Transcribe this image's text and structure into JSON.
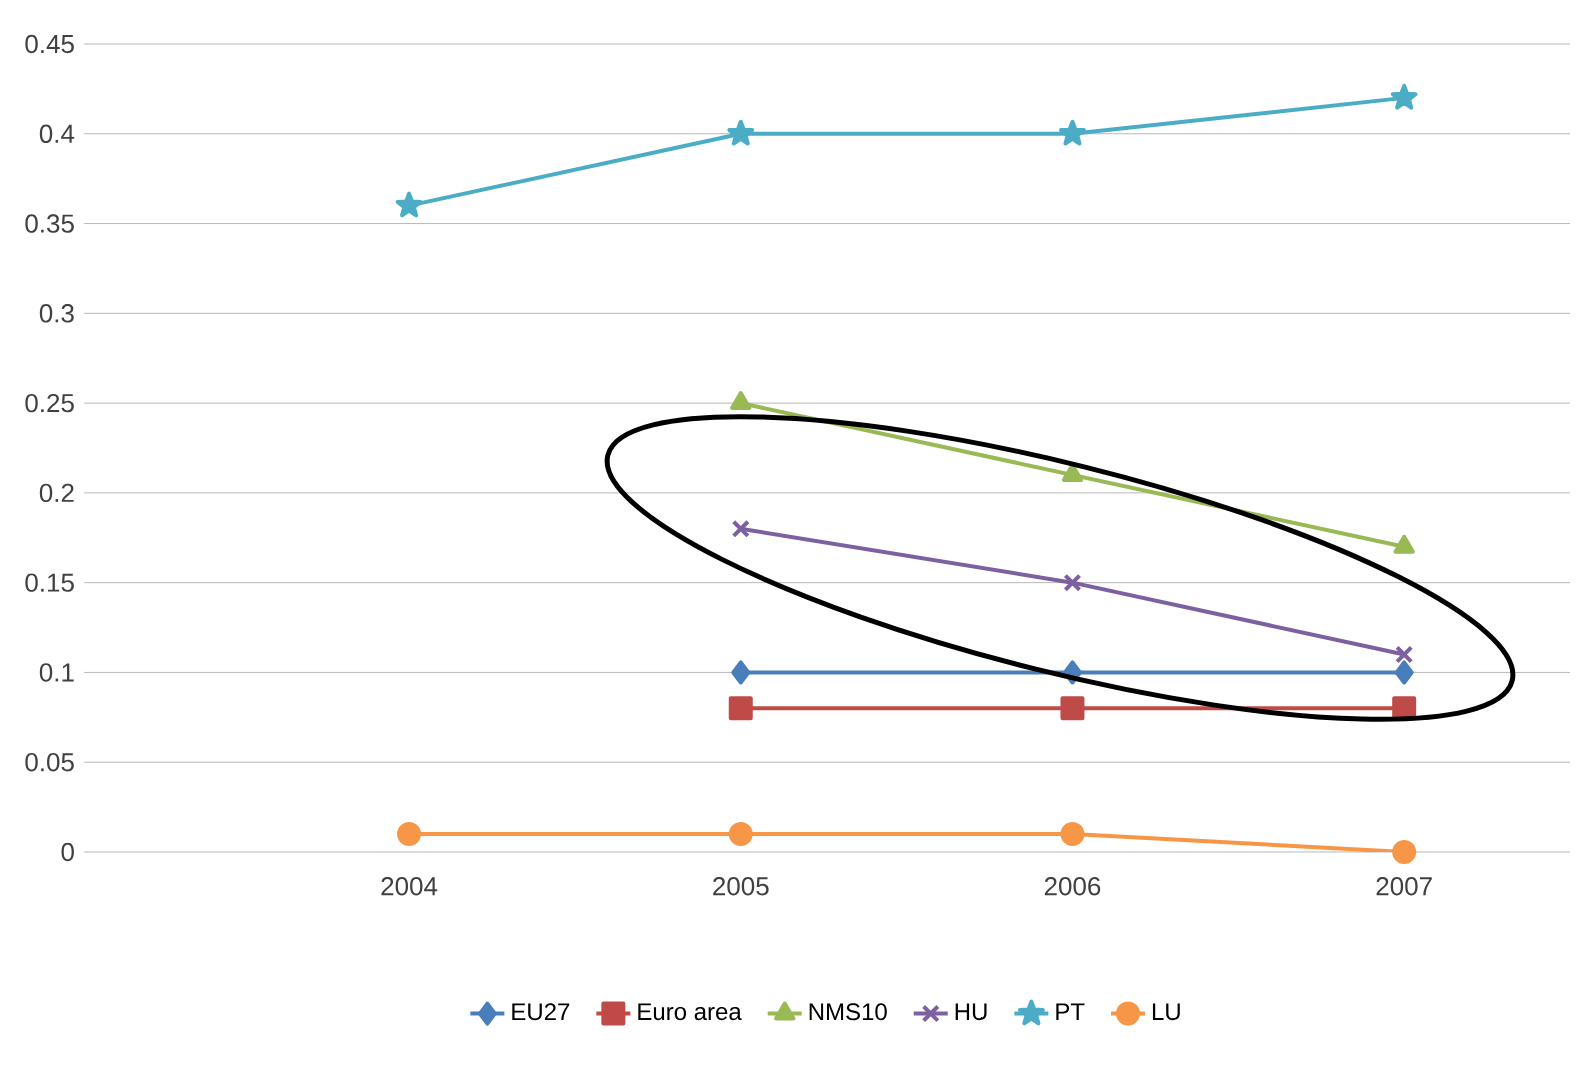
{
  "chart_data": {
    "type": "line",
    "categories": [
      "2004",
      "2005",
      "2006",
      "2007"
    ],
    "series": [
      {
        "name": "EU27",
        "color": "#4a7ebb",
        "marker": "diamond",
        "values": [
          null,
          0.1,
          0.1,
          0.1
        ]
      },
      {
        "name": "Euro area",
        "color": "#be4b48",
        "marker": "square",
        "values": [
          null,
          0.08,
          0.08,
          0.08
        ]
      },
      {
        "name": "NMS10",
        "color": "#98b954",
        "marker": "triangle",
        "values": [
          null,
          0.25,
          0.21,
          0.17
        ]
      },
      {
        "name": "HU",
        "color": "#7d60a0",
        "marker": "cross",
        "values": [
          null,
          0.18,
          0.15,
          0.11
        ]
      },
      {
        "name": "PT",
        "color": "#4bacc6",
        "marker": "star",
        "values": [
          0.36,
          0.4,
          0.4,
          0.42
        ]
      },
      {
        "name": "LU",
        "color": "#f79646",
        "marker": "circle",
        "values": [
          0.01,
          0.01,
          0.01,
          0.0
        ]
      }
    ],
    "ylim": [
      0,
      0.45
    ],
    "yticks": [
      0,
      0.05,
      0.1,
      0.15,
      0.2,
      0.25,
      0.3,
      0.35,
      0.4,
      0.45
    ],
    "grid": "y",
    "legend": "bottom"
  }
}
